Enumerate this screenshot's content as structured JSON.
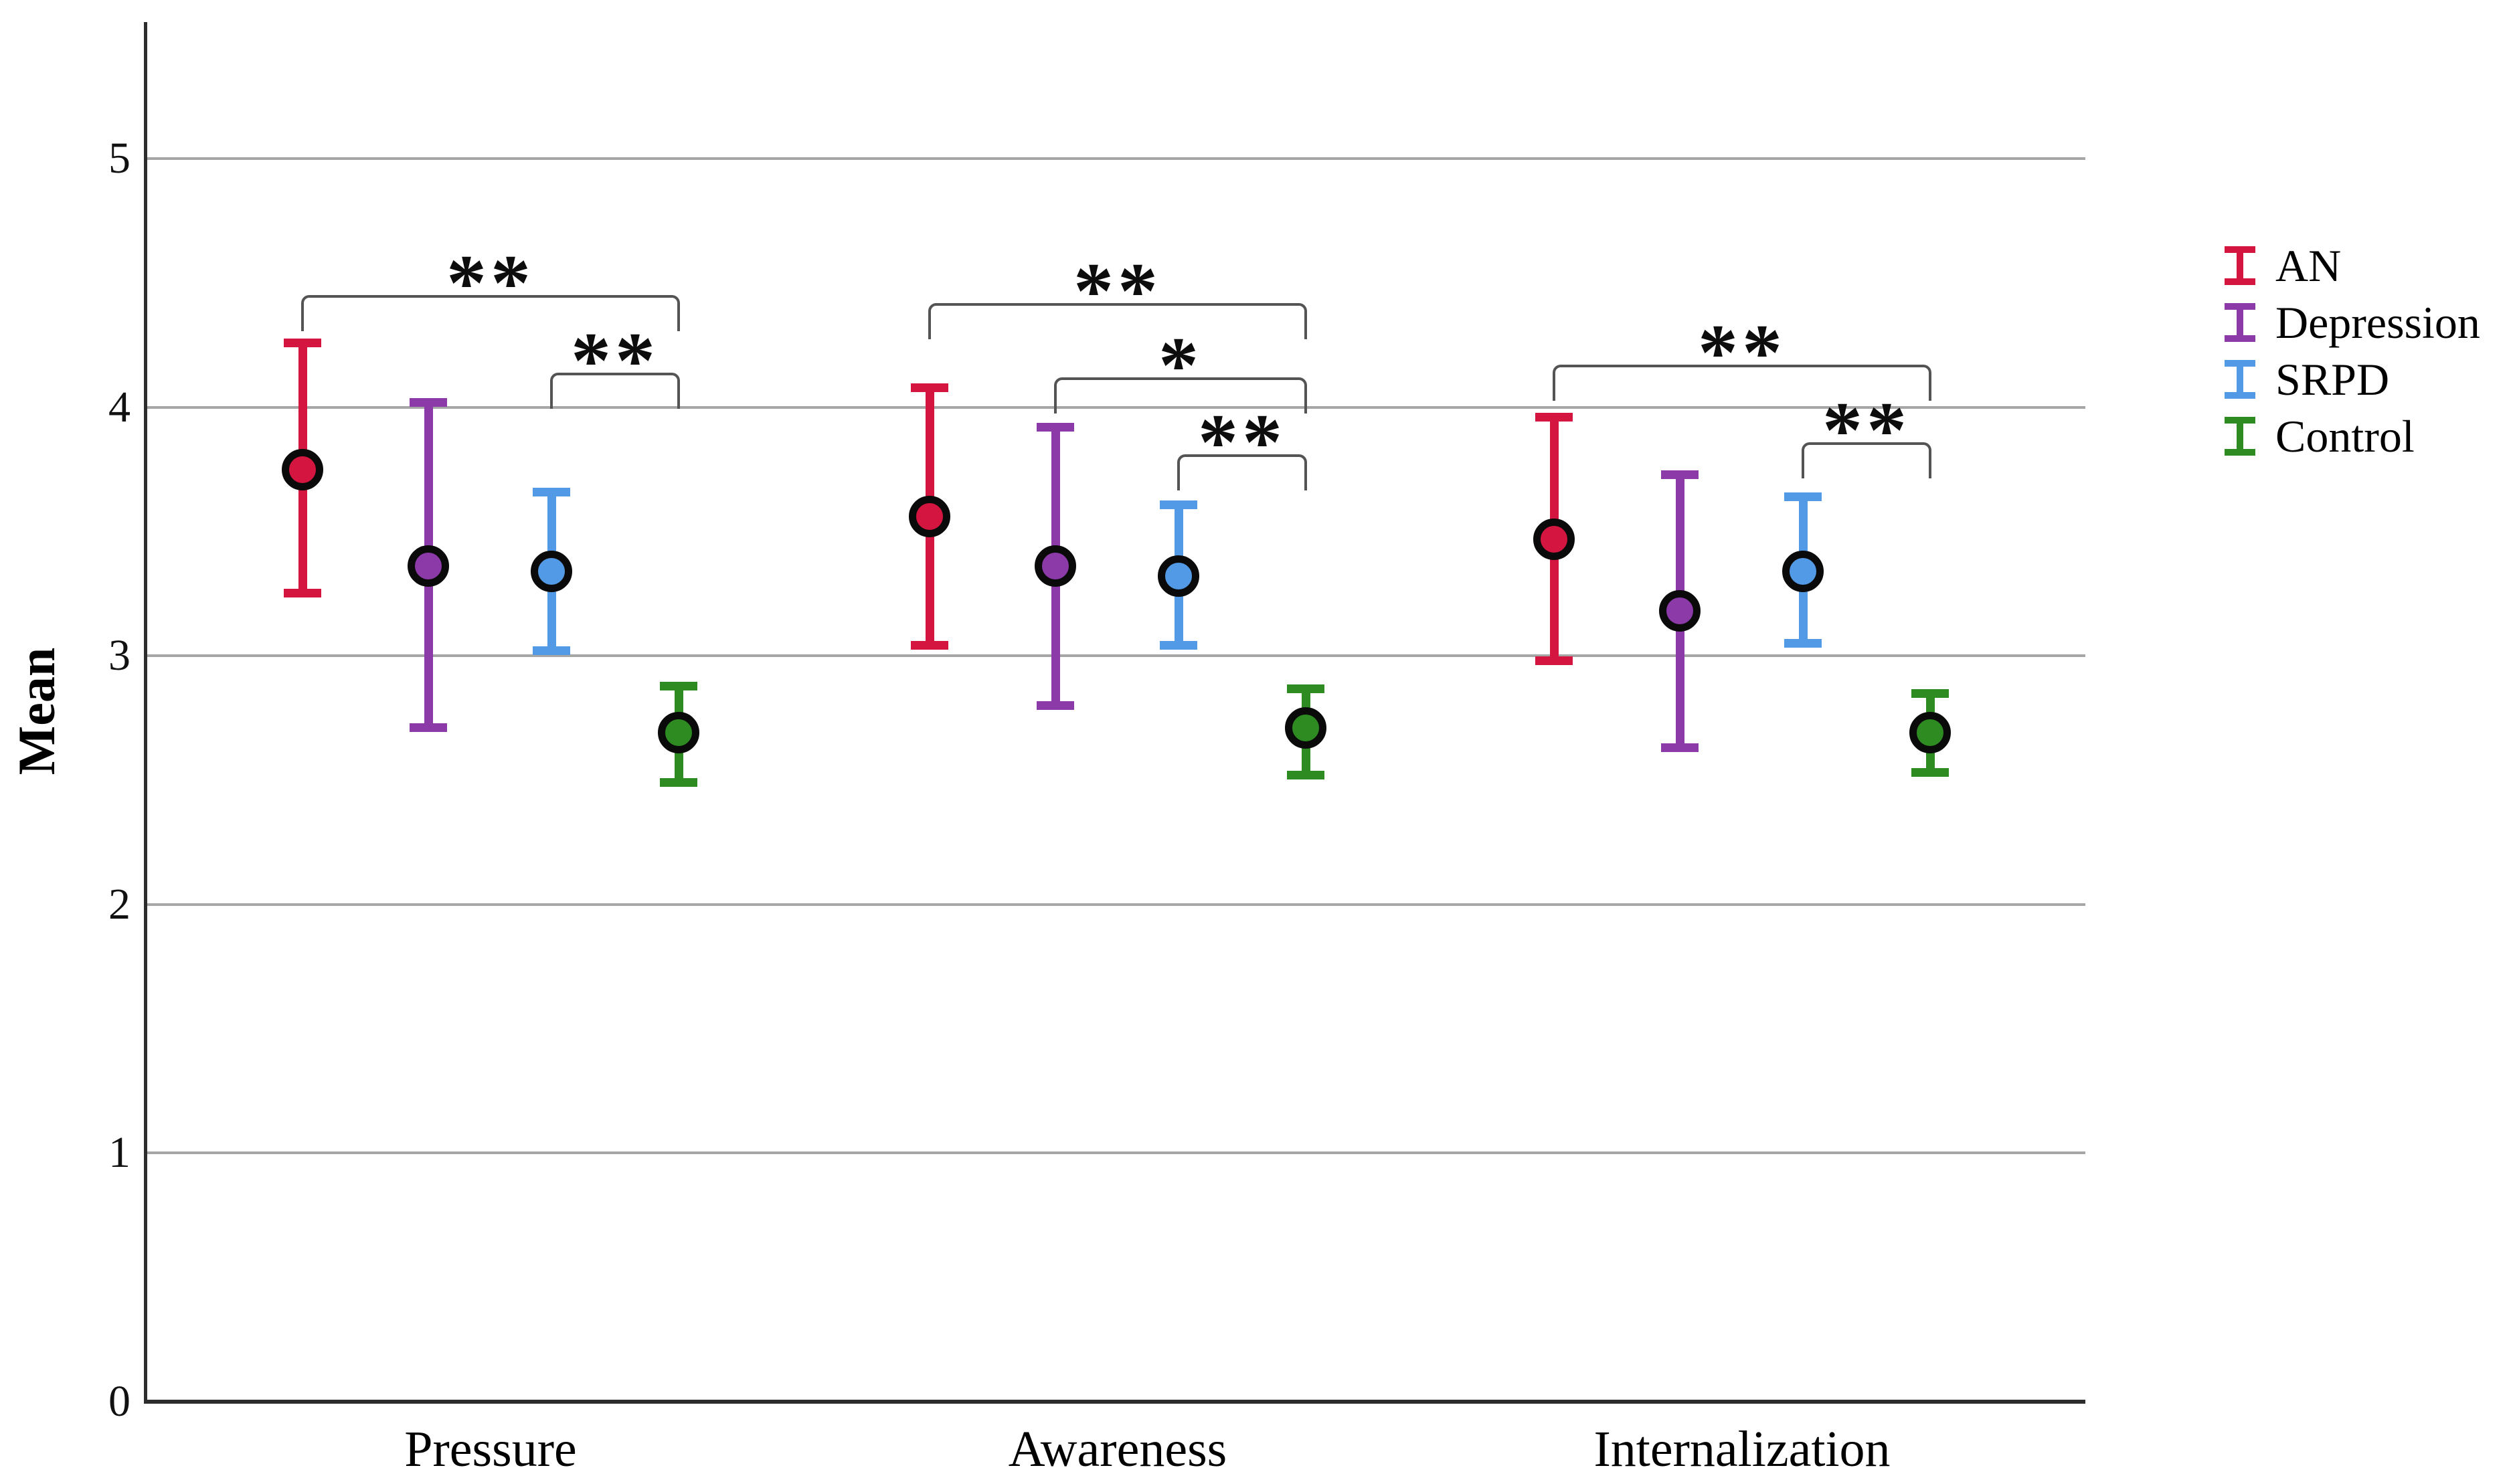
{
  "chart_data": {
    "type": "errorbar",
    "title": "",
    "ylabel": "Mean",
    "xlabel": "",
    "categories": [
      "Pressure",
      "Awareness",
      "Internalization"
    ],
    "series": [
      {
        "name": "AN",
        "color": "#d31540",
        "means": [
          3.75,
          3.56,
          3.47
        ],
        "ci_low": [
          3.25,
          3.04,
          2.98
        ],
        "ci_high": [
          4.26,
          4.08,
          3.96
        ]
      },
      {
        "name": "Depression",
        "color": "#8b3aa8",
        "means": [
          3.36,
          3.36,
          3.18
        ],
        "ci_low": [
          2.71,
          2.8,
          2.63
        ],
        "ci_high": [
          4.02,
          3.92,
          3.73
        ]
      },
      {
        "name": "SRPD",
        "color": "#529ae6",
        "means": [
          3.34,
          3.32,
          3.34
        ],
        "ci_low": [
          3.02,
          3.04,
          3.05
        ],
        "ci_high": [
          3.66,
          3.61,
          3.64
        ]
      },
      {
        "name": "Control",
        "color": "#2e8b22",
        "means": [
          2.69,
          2.71,
          2.69
        ],
        "ci_low": [
          2.49,
          2.52,
          2.53
        ],
        "ci_high": [
          2.88,
          2.87,
          2.85
        ]
      }
    ],
    "y_axis": {
      "min": 0,
      "max": 5.55,
      "ticks": [
        0,
        1,
        2,
        3,
        4,
        5
      ],
      "gridlines": [
        1,
        2,
        3,
        4,
        5
      ],
      "grid_on": true
    },
    "significance": [
      {
        "category": "Pressure",
        "from": "AN",
        "to": "Control",
        "label": "**",
        "level": 4.45
      },
      {
        "category": "Pressure",
        "from": "SRPD",
        "to": "Control",
        "label": "**",
        "level": 4.14
      },
      {
        "category": "Awareness",
        "from": "AN",
        "to": "Control",
        "label": "**",
        "level": 4.42
      },
      {
        "category": "Awareness",
        "from": "Depression",
        "to": "Control",
        "label": "*",
        "level": 4.12
      },
      {
        "category": "Awareness",
        "from": "SRPD",
        "to": "Control",
        "label": "**",
        "level": 3.81
      },
      {
        "category": "Internalization",
        "from": "AN",
        "to": "Control",
        "label": "**",
        "level": 4.17
      },
      {
        "category": "Internalization",
        "from": "SRPD",
        "to": "Control",
        "label": "**",
        "level": 3.86
      }
    ],
    "legend": {
      "position": "right",
      "entries": [
        "AN",
        "Depression",
        "SRPD",
        "Control"
      ]
    }
  }
}
